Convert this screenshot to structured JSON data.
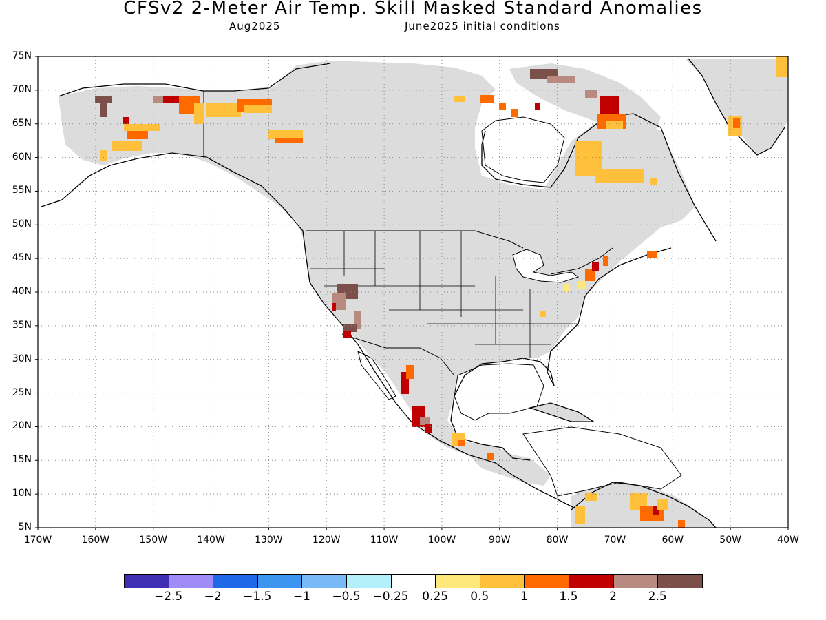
{
  "title": "CFSv2 2-Meter Air Temp. Skill Masked Standard Anomalies",
  "valid_period": "Aug2025",
  "initial_conditions": "June2025 initial conditions",
  "lat_labels": [
    "75N",
    "70N",
    "65N",
    "60N",
    "55N",
    "50N",
    "45N",
    "40N",
    "35N",
    "30N",
    "25N",
    "20N",
    "15N",
    "10N",
    "5N"
  ],
  "lon_labels": [
    "170W",
    "160W",
    "150W",
    "140W",
    "130W",
    "120W",
    "110W",
    "100W",
    "90W",
    "80W",
    "70W",
    "60W",
    "50W",
    "40W"
  ],
  "colorbar": {
    "colors": [
      "#3f2eb4",
      "#a08cf7",
      "#1f68e8",
      "#3c96f0",
      "#78b9f7",
      "#b4f0fa",
      "#ffffff",
      "#ffe87a",
      "#ffc03c",
      "#ff6a00",
      "#c00000",
      "#b88a80",
      "#7a5048"
    ],
    "labels": [
      "−2.5",
      "−2",
      "−1.5",
      "−1",
      "−0.5",
      "−0.25",
      "0.25",
      "0.5",
      "1",
      "1.5",
      "2",
      "2.5"
    ]
  },
  "colors": {
    "mask": "#dcdcdc",
    "ocean": "#ffffff",
    "coast": "#000000"
  }
}
